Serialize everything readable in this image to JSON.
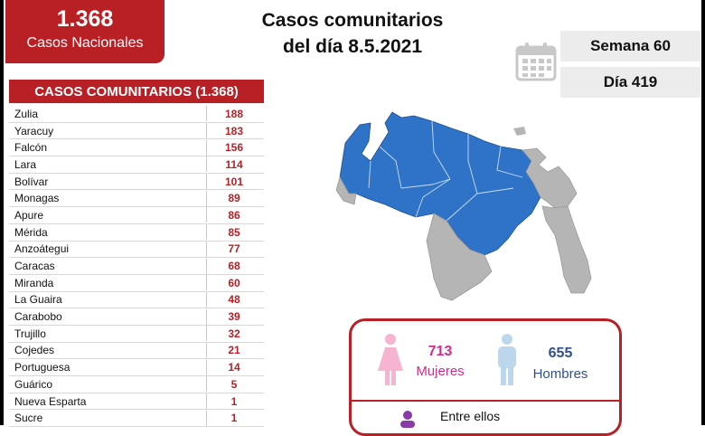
{
  "kpi": {
    "value": "1.368",
    "label": "Casos Nacionales"
  },
  "title": {
    "line1": "Casos comunitarios",
    "line2": "del día 8.5.2021"
  },
  "period": {
    "week": "Semana 60",
    "day": "Día 419"
  },
  "table": {
    "header": "CASOS COMUNITARIOS (1.368)",
    "rows": [
      {
        "name": "Zulia",
        "value": "188"
      },
      {
        "name": "Yaracuy",
        "value": "183"
      },
      {
        "name": "Falcón",
        "value": "156"
      },
      {
        "name": "Lara",
        "value": "114"
      },
      {
        "name": "Bolívar",
        "value": "101"
      },
      {
        "name": "Monagas",
        "value": "89"
      },
      {
        "name": "Apure",
        "value": "86"
      },
      {
        "name": "Mérida",
        "value": "85"
      },
      {
        "name": "Anzoátegui",
        "value": "77"
      },
      {
        "name": "Caracas",
        "value": "68"
      },
      {
        "name": "Miranda",
        "value": "60"
      },
      {
        "name": "La Guaira",
        "value": "48"
      },
      {
        "name": "Carabobo",
        "value": "39"
      },
      {
        "name": "Trujillo",
        "value": "32"
      },
      {
        "name": "Cojedes",
        "value": "21"
      },
      {
        "name": "Portuguesa",
        "value": "14"
      },
      {
        "name": "Guárico",
        "value": "5"
      },
      {
        "name": "Nueva Esparta",
        "value": "1"
      },
      {
        "name": "Sucre",
        "value": "1"
      }
    ]
  },
  "gender": {
    "female": {
      "value": "713",
      "label": "Mujeres"
    },
    "male": {
      "value": "655",
      "label": "Hombres"
    },
    "footer_text": "Entre ellos"
  },
  "colors": {
    "brand_red": "#b82025",
    "map_affected": "#2f73c8",
    "map_unaffected": "#b5b5b5",
    "female": "#d32a8c",
    "male": "#2f4f8f"
  },
  "icons": [
    "calendar-icon",
    "female-figure-icon",
    "male-figure-icon",
    "person-icon"
  ]
}
